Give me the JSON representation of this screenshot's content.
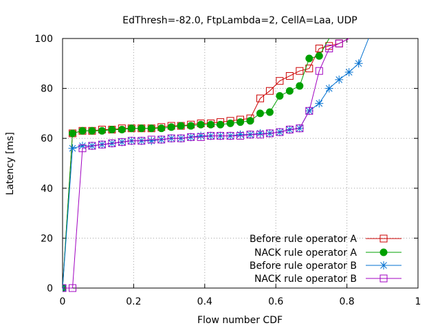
{
  "chart_data": {
    "type": "line",
    "title": "EdThresh=-82.0, FtpLambda=2, CellA=Laa, UDP",
    "xlabel": "Flow number CDF",
    "ylabel": "Latency [ms]",
    "xlim": [
      0,
      1
    ],
    "ylim": [
      0,
      100
    ],
    "xticks": [
      "0",
      "0.2",
      "0.4",
      "0.6",
      "0.8",
      "1"
    ],
    "yticks": [
      "0",
      "20",
      "40",
      "60",
      "80",
      "100"
    ],
    "grid": "dotted",
    "legend_position": "bottom-right",
    "series": [
      {
        "name": "Before rule operator A",
        "color": "#cc0000",
        "marker": "open-square",
        "x": [
          0,
          0.028,
          0.056,
          0.083,
          0.111,
          0.139,
          0.167,
          0.194,
          0.222,
          0.25,
          0.278,
          0.306,
          0.333,
          0.361,
          0.389,
          0.417,
          0.444,
          0.472,
          0.5,
          0.528,
          0.556,
          0.583,
          0.611,
          0.639,
          0.667,
          0.694,
          0.722,
          0.75,
          0.778,
          0.806
        ],
        "y": [
          0,
          62,
          63,
          63,
          63.5,
          63.5,
          64,
          64,
          64,
          64,
          64.5,
          65,
          65,
          65.5,
          66,
          66,
          66.5,
          67,
          67.5,
          68,
          76,
          79,
          83,
          85,
          87,
          88,
          96,
          97,
          98,
          100
        ]
      },
      {
        "name": "NACK rule operator A",
        "color": "#00a000",
        "marker": "filled-circle",
        "x": [
          0,
          0.028,
          0.056,
          0.083,
          0.111,
          0.139,
          0.167,
          0.194,
          0.222,
          0.25,
          0.278,
          0.306,
          0.333,
          0.361,
          0.389,
          0.417,
          0.444,
          0.472,
          0.5,
          0.528,
          0.556,
          0.583,
          0.611,
          0.639,
          0.667,
          0.694,
          0.722,
          0.75
        ],
        "y": [
          0,
          62,
          63,
          63,
          63,
          63.5,
          63.5,
          64,
          64,
          64,
          64,
          64.5,
          65,
          65,
          65.5,
          65.5,
          65.5,
          66,
          66.5,
          67,
          70,
          70.5,
          77,
          79,
          81,
          92,
          93,
          100
        ]
      },
      {
        "name": "Before rule operator B",
        "color": "#0070d0",
        "marker": "asterisk",
        "x": [
          0,
          0.028,
          0.056,
          0.083,
          0.111,
          0.139,
          0.167,
          0.194,
          0.222,
          0.25,
          0.278,
          0.306,
          0.333,
          0.361,
          0.389,
          0.417,
          0.444,
          0.472,
          0.5,
          0.528,
          0.556,
          0.583,
          0.611,
          0.639,
          0.667,
          0.694,
          0.722,
          0.75,
          0.778,
          0.806,
          0.833,
          0.861
        ],
        "y": [
          0,
          56,
          57,
          57,
          57.5,
          58,
          58.5,
          59,
          59,
          59,
          59.5,
          60,
          60,
          60.5,
          61,
          61,
          61,
          61,
          61.5,
          61.5,
          62,
          62,
          62.5,
          63.5,
          64,
          71,
          74,
          80,
          83.5,
          86.5,
          90,
          100
        ]
      },
      {
        "name": "NACK rule operator B",
        "color": "#a000c0",
        "marker": "open-square",
        "x": [
          0,
          0.028,
          0.056,
          0.083,
          0.111,
          0.139,
          0.167,
          0.194,
          0.222,
          0.25,
          0.278,
          0.306,
          0.333,
          0.361,
          0.389,
          0.417,
          0.444,
          0.472,
          0.5,
          0.528,
          0.556,
          0.583,
          0.611,
          0.639,
          0.667,
          0.694,
          0.722,
          0.75,
          0.778,
          0.806
        ],
        "y": [
          0,
          0,
          56,
          57,
          57.5,
          58,
          58.5,
          59,
          59,
          59.5,
          59.5,
          60,
          60,
          60.5,
          60.5,
          61,
          61,
          61,
          61,
          61.5,
          61.5,
          62,
          62.5,
          63.5,
          64,
          71,
          87,
          96,
          98,
          100
        ]
      }
    ]
  }
}
